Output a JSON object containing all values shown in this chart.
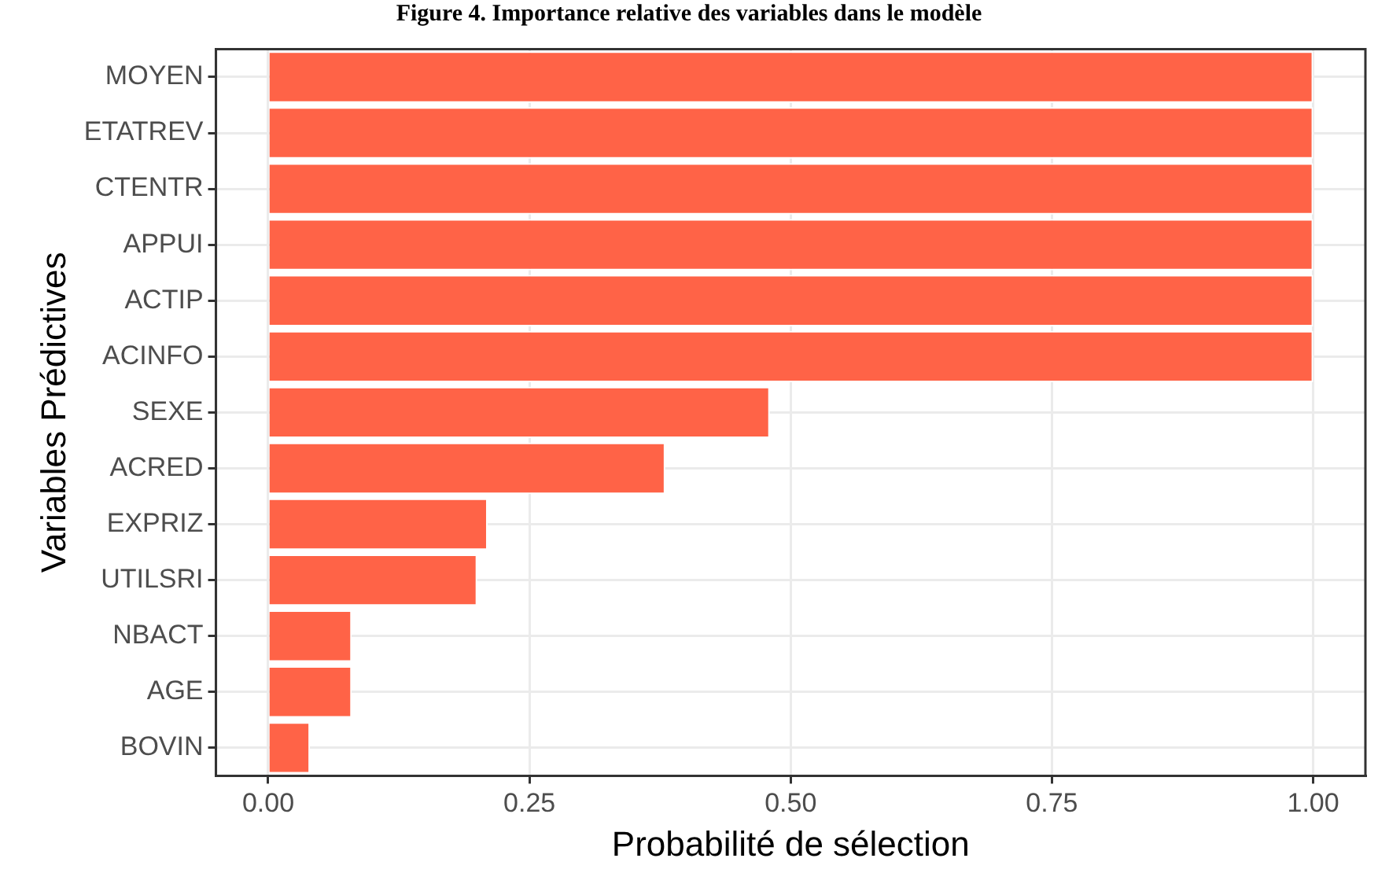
{
  "chart_data": {
    "type": "bar",
    "orientation": "horizontal",
    "title": "Figure 4. Importance relative des variables dans le modèle",
    "xlabel": "Probabilité de sélection",
    "ylabel": "Variables Prédictives",
    "categories": [
      "MOYEN",
      "ETATREV",
      "CTENTR",
      "APPUI",
      "ACTIP",
      "ACINFO",
      "SEXE",
      "ACRED",
      "EXPRIZ",
      "UTILSRI",
      "NBACT",
      "AGE",
      "BOVIN"
    ],
    "values": [
      1.0,
      1.0,
      1.0,
      1.0,
      1.0,
      1.0,
      0.48,
      0.38,
      0.21,
      0.2,
      0.08,
      0.08,
      0.04
    ],
    "color": "#ff6347",
    "xlim": [
      -0.05,
      1.05
    ],
    "xticks": [
      {
        "value": 0,
        "label": "0.00"
      },
      {
        "value": 0.25,
        "label": "0.25"
      },
      {
        "value": 0.5,
        "label": "0.50"
      },
      {
        "value": 0.75,
        "label": "0.75"
      },
      {
        "value": 1,
        "label": "1.00"
      }
    ],
    "grid": true,
    "legend": false
  }
}
